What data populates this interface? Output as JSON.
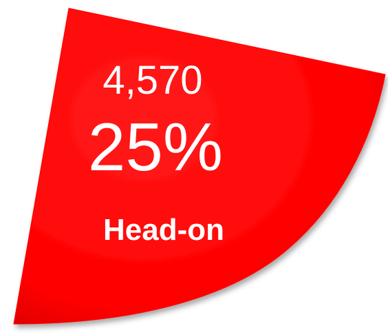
{
  "chart_data": {
    "type": "pie",
    "slices": [
      {
        "label": "Head-on",
        "value": 4570,
        "value_text": "4,570",
        "percent": 25,
        "percent_text": "25%",
        "color": "#ff0000"
      }
    ],
    "title": "",
    "legend": "none"
  }
}
